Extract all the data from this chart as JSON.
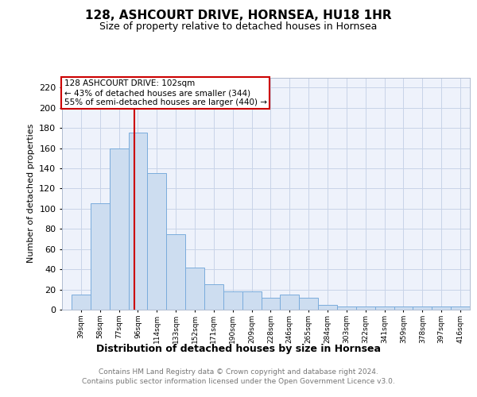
{
  "title": "128, ASHCOURT DRIVE, HORNSEA, HU18 1HR",
  "subtitle": "Size of property relative to detached houses in Hornsea",
  "xlabel": "Distribution of detached houses by size in Hornsea",
  "ylabel": "Number of detached properties",
  "categories": [
    "39sqm",
    "58sqm",
    "77sqm",
    "96sqm",
    "114sqm",
    "133sqm",
    "152sqm",
    "171sqm",
    "190sqm",
    "209sqm",
    "228sqm",
    "246sqm",
    "265sqm",
    "284sqm",
    "303sqm",
    "322sqm",
    "341sqm",
    "359sqm",
    "378sqm",
    "397sqm",
    "416sqm"
  ],
  "values": [
    15,
    105,
    160,
    175,
    135,
    75,
    42,
    25,
    18,
    18,
    12,
    15,
    12,
    5,
    3,
    3,
    3,
    3,
    3,
    3,
    3
  ],
  "bar_color": "#cdddf0",
  "bar_edge_color": "#7aacdc",
  "property_sqm": 102,
  "property_label": "128 ASHCOURT DRIVE: 102sqm",
  "annotation_line1": "← 43% of detached houses are smaller (344)",
  "annotation_line2": "55% of semi-detached houses are larger (440) →",
  "annotation_box_color": "#ffffff",
  "annotation_box_edge_color": "#cc0000",
  "vline_color": "#cc0000",
  "ylim": [
    0,
    230
  ],
  "yticks": [
    0,
    20,
    40,
    60,
    80,
    100,
    120,
    140,
    160,
    180,
    200,
    220
  ],
  "grid_color": "#c8d4e8",
  "footer_line1": "Contains HM Land Registry data © Crown copyright and database right 2024.",
  "footer_line2": "Contains public sector information licensed under the Open Government Licence v3.0.",
  "bg_color": "#eef2fb",
  "bin_width": 19
}
